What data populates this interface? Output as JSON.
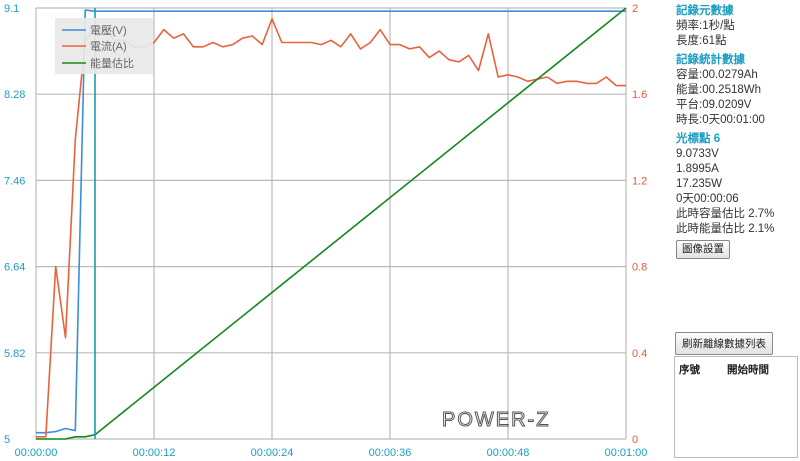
{
  "chart_data": {
    "type": "line",
    "x_ticks": [
      "00:00:00",
      "00:00:12",
      "00:00:24",
      "00:00:36",
      "00:00:48",
      "00:01:00"
    ],
    "x_seconds_max": 60,
    "y_left": {
      "min": 5,
      "max": 9.1,
      "ticks": [
        "9.1",
        "8.28",
        "7.46",
        "6.64",
        "5.82",
        "5"
      ]
    },
    "y_right": {
      "min": 0,
      "max": 2,
      "ticks": [
        "2",
        "1.6",
        "1.2",
        "0.8",
        "0.4",
        "0"
      ]
    },
    "legend": [
      "電壓(V)",
      "電流(A)",
      "能量估比"
    ],
    "legend_position": "top-left",
    "grid": true,
    "watermark": "POWER-Z",
    "series": [
      {
        "name": "電壓(V)",
        "axis": "left",
        "color": "#3a8fd8",
        "x": [
          0,
          1,
          2,
          3,
          4,
          5,
          6,
          7,
          8,
          9,
          10,
          11,
          12,
          13,
          14,
          15,
          16,
          17,
          18,
          19,
          20,
          21,
          22,
          23,
          24,
          25,
          26,
          27,
          28,
          29,
          30,
          31,
          32,
          33,
          34,
          35,
          36,
          37,
          38,
          39,
          40,
          41,
          42,
          43,
          44,
          45,
          46,
          47,
          48,
          49,
          50,
          51,
          52,
          53,
          54,
          55,
          56,
          57,
          58,
          59,
          60
        ],
        "y": [
          5.06,
          5.06,
          5.07,
          5.1,
          5.08,
          9.08,
          9.07,
          9.07,
          9.07,
          9.07,
          9.07,
          9.07,
          9.07,
          9.07,
          9.07,
          9.07,
          9.07,
          9.07,
          9.07,
          9.07,
          9.07,
          9.07,
          9.07,
          9.07,
          9.07,
          9.07,
          9.07,
          9.07,
          9.07,
          9.07,
          9.07,
          9.07,
          9.07,
          9.07,
          9.07,
          9.07,
          9.07,
          9.07,
          9.07,
          9.07,
          9.07,
          9.07,
          9.07,
          9.07,
          9.07,
          9.07,
          9.07,
          9.07,
          9.07,
          9.07,
          9.07,
          9.07,
          9.07,
          9.07,
          9.07,
          9.07,
          9.07,
          9.07,
          9.07,
          9.07,
          9.07
        ]
      },
      {
        "name": "電流(A)",
        "axis": "right",
        "color": "#e8623d",
        "x": [
          0,
          1,
          2,
          3,
          4,
          5,
          6,
          7,
          8,
          9,
          10,
          11,
          12,
          13,
          14,
          15,
          16,
          17,
          18,
          19,
          20,
          21,
          22,
          23,
          24,
          25,
          26,
          27,
          28,
          29,
          30,
          31,
          32,
          33,
          34,
          35,
          36,
          37,
          38,
          39,
          40,
          41,
          42,
          43,
          44,
          45,
          46,
          47,
          48,
          49,
          50,
          51,
          52,
          53,
          54,
          55,
          56,
          57,
          58,
          59,
          60
        ],
        "y": [
          0.01,
          0.01,
          0.8,
          0.47,
          1.39,
          1.85,
          1.9,
          1.9,
          1.85,
          1.85,
          1.82,
          1.82,
          1.84,
          1.9,
          1.86,
          1.88,
          1.82,
          1.82,
          1.84,
          1.82,
          1.83,
          1.86,
          1.87,
          1.83,
          1.95,
          1.84,
          1.84,
          1.84,
          1.84,
          1.83,
          1.85,
          1.82,
          1.88,
          1.81,
          1.84,
          1.9,
          1.83,
          1.83,
          1.81,
          1.82,
          1.77,
          1.8,
          1.76,
          1.75,
          1.78,
          1.71,
          1.88,
          1.68,
          1.69,
          1.68,
          1.66,
          1.67,
          1.68,
          1.65,
          1.66,
          1.66,
          1.65,
          1.65,
          1.68,
          1.64,
          1.64
        ]
      },
      {
        "name": "能量估比",
        "axis": "right",
        "color": "#13891b",
        "x": [
          0,
          1,
          2,
          3,
          4,
          5,
          6,
          60
        ],
        "y": [
          0,
          0,
          0,
          0,
          0.01,
          0.01,
          0.02,
          2
        ]
      }
    ],
    "cursor_x": 6
  },
  "panel": {
    "meta_title": "記錄元數據",
    "rate": "頻率:1秒/點",
    "length": "長度:61點",
    "stats_title": "記錄統計數據",
    "capacity": "容量:00.0279Ah",
    "energy": "能量:00.2518Wh",
    "plateau": "平台:09.0209V",
    "duration": "時長:0天00:01:00",
    "cursor_title": "光標點 6",
    "cursor_v": "9.0733V",
    "cursor_a": "1.8995A",
    "cursor_w": "17.235W",
    "cursor_t": "0天00:00:06",
    "cap_ratio": "此時容量估比 2.7%",
    "energy_ratio": "此時能量估比 2.1%",
    "settings_button": "圖像設置",
    "refresh_button": "刷新離線數據列表",
    "table_col_index": "序號",
    "table_col_start": "開始時間"
  },
  "colors": {
    "grid": "#bbbbbb",
    "left_axis": "#1a9ec4",
    "right_axis": "#e05a3c",
    "cursor": "#1aa0a8"
  }
}
